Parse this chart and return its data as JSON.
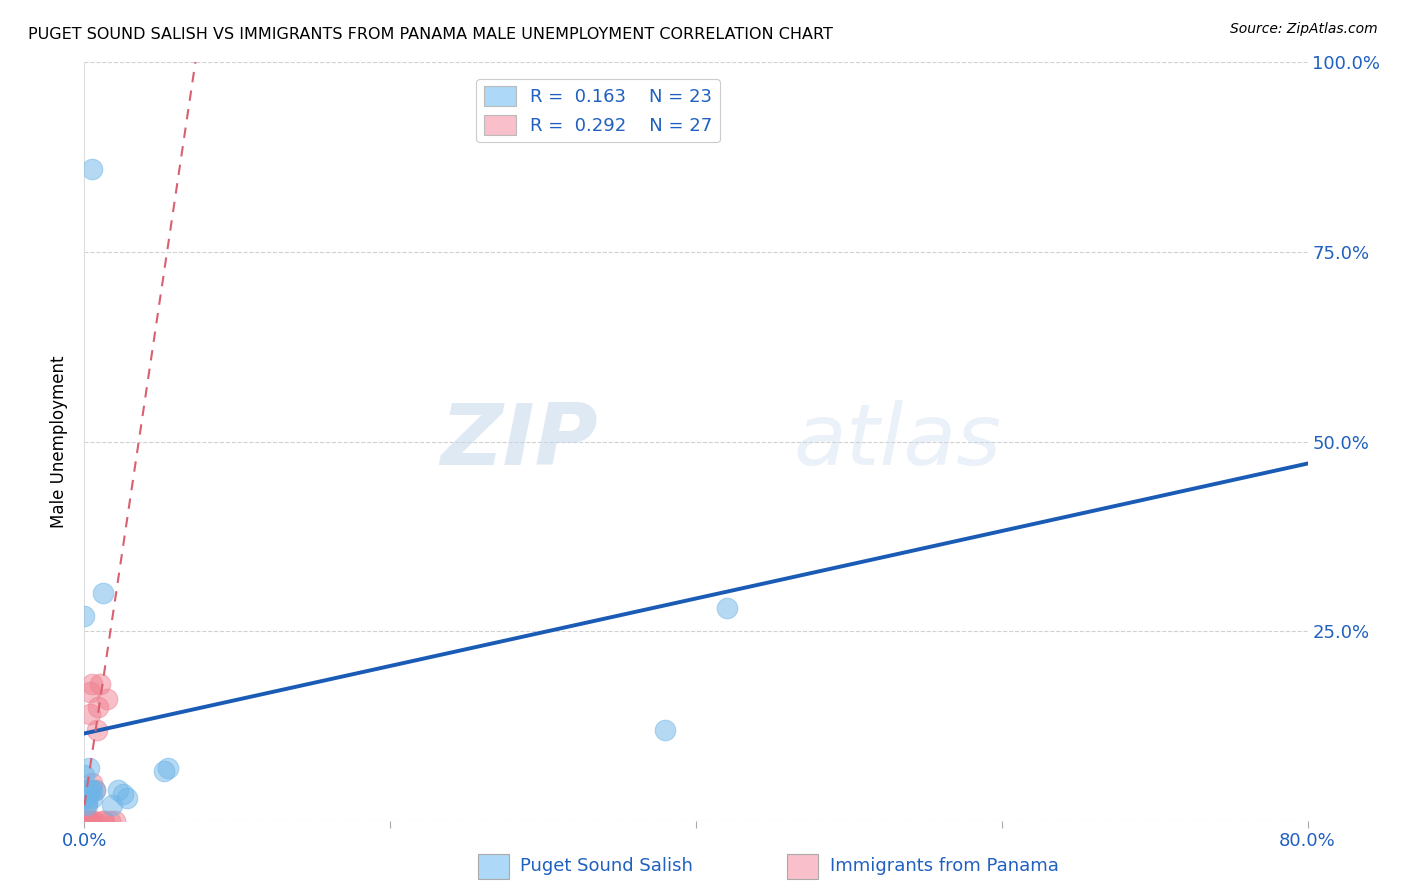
{
  "title": "PUGET SOUND SALISH VS IMMIGRANTS FROM PANAMA MALE UNEMPLOYMENT CORRELATION CHART",
  "source": "Source: ZipAtlas.com",
  "ylabel": "Male Unemployment",
  "xlim": [
    0.0,
    0.8
  ],
  "ylim": [
    0.0,
    1.0
  ],
  "xtick_positions": [
    0.0,
    0.2,
    0.4,
    0.6,
    0.8
  ],
  "xticklabels": [
    "0.0%",
    "",
    "",
    "",
    "80.0%"
  ],
  "ytick_positions": [
    0.0,
    0.25,
    0.5,
    0.75,
    1.0
  ],
  "ytick_labels": [
    "",
    "25.0%",
    "50.0%",
    "75.0%",
    "100.0%"
  ],
  "legend1_label": "R =  0.163    N = 23",
  "legend2_label": "R =  0.292    N = 27",
  "legend1_color": "#ADD8F7",
  "legend2_color": "#F9C0CB",
  "series1_color": "#6EB5E8",
  "series2_color": "#F08090",
  "trendline1_color": "#1A5BB5",
  "trendline2_color": "#D86070",
  "watermark_zip": "ZIP",
  "watermark_atlas": "atlas",
  "background_color": "#ffffff",
  "series1_x": [
    0.005,
    0.012,
    0.005,
    0.003,
    0.002,
    0.005,
    0.007,
    0.003,
    0.002,
    0.002,
    0.002,
    0.0,
    0.0,
    0.018,
    0.022,
    0.025,
    0.028,
    0.052,
    0.055,
    0.38,
    0.42,
    0.0,
    0.004
  ],
  "series1_y": [
    0.86,
    0.3,
    0.04,
    0.07,
    0.03,
    0.03,
    0.04,
    0.04,
    0.025,
    0.02,
    0.04,
    0.03,
    0.06,
    0.02,
    0.04,
    0.035,
    0.03,
    0.065,
    0.07,
    0.12,
    0.28,
    0.27,
    0.04
  ],
  "series2_x": [
    0.0,
    0.0,
    0.001,
    0.001,
    0.001,
    0.002,
    0.002,
    0.002,
    0.003,
    0.003,
    0.003,
    0.004,
    0.004,
    0.004,
    0.005,
    0.005,
    0.005,
    0.006,
    0.007,
    0.008,
    0.009,
    0.01,
    0.012,
    0.013,
    0.015,
    0.017,
    0.02
  ],
  "series2_y": [
    0.0,
    0.0,
    0.0,
    0.0,
    0.02,
    0.0,
    0.0,
    0.04,
    0.0,
    0.0,
    0.0,
    0.0,
    0.14,
    0.17,
    0.0,
    0.05,
    0.18,
    0.0,
    0.04,
    0.12,
    0.15,
    0.18,
    0.0,
    0.0,
    0.16,
    0.0,
    0.0
  ],
  "trendline1_slope": 0.445,
  "trendline1_intercept": 0.115,
  "trendline2_slope": 13.5,
  "trendline2_intercept": 0.02,
  "bottom_legend_label1": "Puget Sound Salish",
  "bottom_legend_label2": "Immigrants from Panama"
}
